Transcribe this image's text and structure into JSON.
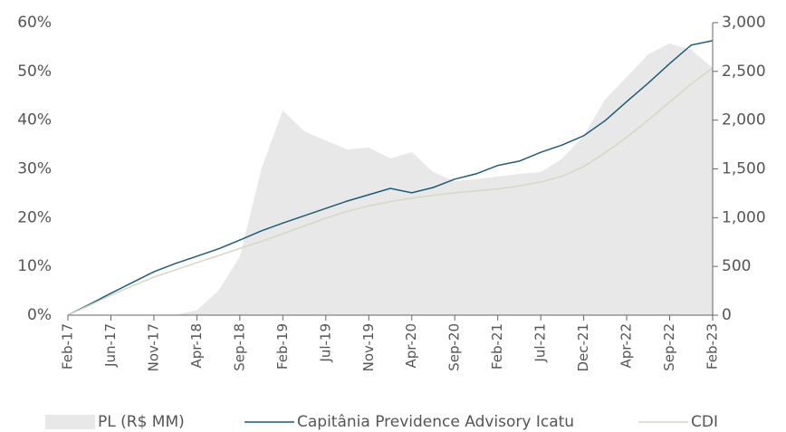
{
  "chart_data": {
    "type": "line",
    "categories": [
      "Feb-17",
      null,
      "Jun-17",
      null,
      "Nov-17",
      null,
      "Apr-18",
      null,
      "Sep-18",
      null,
      "Feb-19",
      null,
      "Jul-19",
      null,
      "Nov-19",
      null,
      "Apr-20",
      null,
      "Sep-20",
      null,
      "Feb-21",
      null,
      "Jul-21",
      null,
      "Dec-21",
      null,
      "Apr-22",
      null,
      "Sep-22",
      null,
      "Feb-23"
    ],
    "series": [
      {
        "name": "PL (R$ MM)",
        "kind": "area",
        "axis": "y2",
        "color": "#e8e8e8",
        "values": [
          0,
          0,
          0,
          0,
          0,
          5,
          50,
          250,
          600,
          1500,
          2100,
          1885,
          1790,
          1700,
          1720,
          1607,
          1672,
          1467,
          1375,
          1393,
          1421,
          1449,
          1467,
          1607,
          1839,
          2211,
          2443,
          2675,
          2786,
          2721,
          2536
        ]
      },
      {
        "name": "Capitânia Previdence Advisory Icatu",
        "kind": "line",
        "color": "#1f5a78",
        "values": [
          0,
          2.2,
          4.5,
          6.7,
          8.9,
          10.6,
          12.1,
          13.6,
          15.4,
          17.3,
          18.9,
          20.4,
          21.9,
          23.4,
          24.7,
          26.0,
          25.1,
          26.2,
          27.9,
          29.0,
          30.7,
          31.6,
          33.4,
          34.9,
          36.8,
          39.9,
          43.8,
          47.6,
          51.6,
          55.4,
          56.3
        ]
      },
      {
        "name": "CDI",
        "kind": "line",
        "color": "#d3d9c3",
        "values": [
          0,
          2.0,
          4.1,
          6.0,
          7.8,
          9.3,
          10.8,
          12.2,
          13.7,
          15.1,
          16.7,
          18.3,
          19.9,
          21.3,
          22.4,
          23.3,
          24.0,
          24.6,
          25.1,
          25.5,
          25.9,
          26.5,
          27.3,
          28.5,
          30.5,
          33.3,
          36.5,
          40.0,
          43.7,
          47.4,
          50.7
        ]
      }
    ],
    "ylim": [
      0,
      60
    ],
    "yticks": [
      {
        "value": 0,
        "label": "0%"
      },
      {
        "value": 10,
        "label": "10%"
      },
      {
        "value": 20,
        "label": "20%"
      },
      {
        "value": 30,
        "label": "30%"
      },
      {
        "value": 40,
        "label": "40%"
      },
      {
        "value": 50,
        "label": "50%"
      },
      {
        "value": 60,
        "label": "60%"
      }
    ],
    "y2lim": [
      0,
      3000
    ],
    "y2ticks": [
      0,
      500,
      {
        "value": 1000,
        "label": "1,000"
      },
      {
        "value": 1500,
        "label": "1,500"
      },
      {
        "value": 2000,
        "label": "2,000"
      },
      {
        "value": 2500,
        "label": "2,500"
      },
      {
        "value": 3000,
        "label": "3,000"
      }
    ],
    "legend": "bottom"
  }
}
